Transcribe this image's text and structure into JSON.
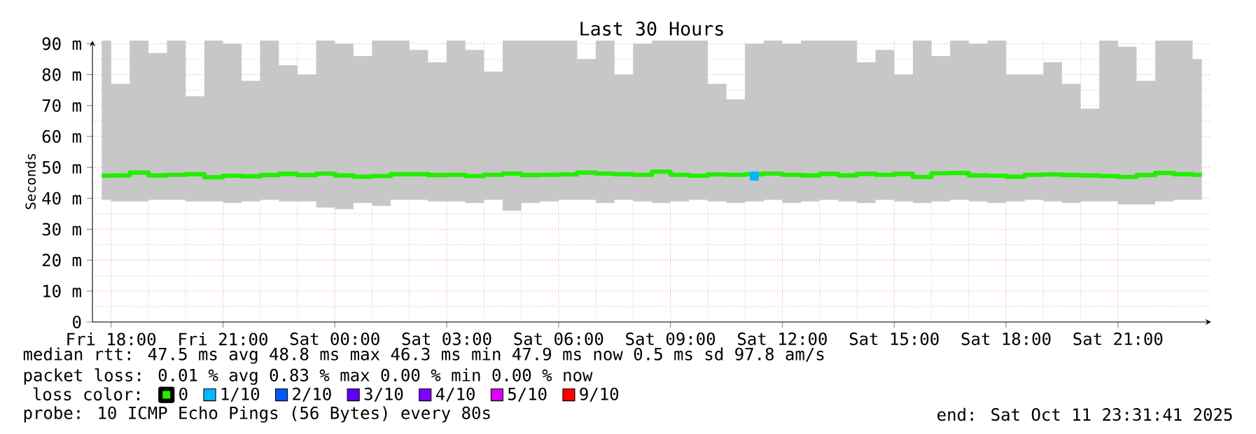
{
  "chart_data": {
    "type": "step",
    "title": "Last 30 Hours",
    "ylabel": "Seconds",
    "legend_title": "loss color:",
    "x": [
      "2025-10-10T17:45",
      "2025-10-10T18:15",
      "2025-10-10T18:45",
      "2025-10-10T19:15",
      "2025-10-10T19:45",
      "2025-10-10T20:15",
      "2025-10-10T20:45",
      "2025-10-10T21:15",
      "2025-10-10T21:45",
      "2025-10-10T22:15",
      "2025-10-10T22:45",
      "2025-10-10T23:15",
      "2025-10-10T23:45",
      "2025-10-11T00:15",
      "2025-10-11T00:45",
      "2025-10-11T01:15",
      "2025-10-11T01:45",
      "2025-10-11T02:15",
      "2025-10-11T02:45",
      "2025-10-11T03:15",
      "2025-10-11T03:45",
      "2025-10-11T04:15",
      "2025-10-11T04:45",
      "2025-10-11T05:15",
      "2025-10-11T05:45",
      "2025-10-11T06:15",
      "2025-10-11T06:45",
      "2025-10-11T07:15",
      "2025-10-11T07:45",
      "2025-10-11T08:15",
      "2025-10-11T08:45",
      "2025-10-11T09:15",
      "2025-10-11T09:45",
      "2025-10-11T10:15",
      "2025-10-11T10:45",
      "2025-10-11T11:15",
      "2025-10-11T11:45",
      "2025-10-11T12:15",
      "2025-10-11T12:45",
      "2025-10-11T13:15",
      "2025-10-11T13:45",
      "2025-10-11T14:15",
      "2025-10-11T14:45",
      "2025-10-11T15:15",
      "2025-10-11T15:45",
      "2025-10-11T16:15",
      "2025-10-11T16:45",
      "2025-10-11T17:15",
      "2025-10-11T17:45",
      "2025-10-11T18:15",
      "2025-10-11T18:45",
      "2025-10-11T19:15",
      "2025-10-11T19:45",
      "2025-10-11T20:15",
      "2025-10-11T20:45",
      "2025-10-11T21:15",
      "2025-10-11T21:45",
      "2025-10-11T22:15",
      "2025-10-11T22:45",
      "2025-10-11T23:15"
    ],
    "series": [
      {
        "name": "0",
        "color": "#22ee00",
        "values": [
          47.3,
          47.4,
          48.3,
          47.4,
          47.6,
          47.8,
          46.8,
          47.3,
          47.1,
          47.5,
          47.9,
          47.5,
          48.0,
          47.4,
          47.0,
          47.2,
          47.8,
          47.8,
          47.5,
          47.6,
          47.2,
          47.6,
          48.0,
          47.5,
          47.6,
          47.7,
          48.3,
          48.0,
          47.8,
          47.6,
          48.6,
          47.6,
          47.3,
          47.7,
          47.6,
          47.8,
          48.0,
          47.6,
          47.4,
          47.9,
          47.4,
          47.9,
          47.6,
          47.9,
          46.9,
          48.1,
          48.2,
          47.4,
          47.3,
          47.0,
          47.6,
          47.7,
          47.5,
          47.4,
          47.2,
          46.9,
          47.5,
          48.2,
          47.8,
          47.6
        ],
        "upper": [
          91,
          77,
          91,
          87,
          91,
          73,
          91,
          90,
          78,
          91,
          83,
          80,
          91,
          90,
          86,
          91,
          91,
          88,
          84,
          91,
          88,
          81,
          91,
          91,
          91,
          91,
          85,
          91,
          80,
          90,
          91,
          91,
          91,
          77,
          72,
          90,
          91,
          90,
          91,
          91,
          91,
          84,
          88,
          80,
          91,
          86,
          91,
          90,
          91,
          80,
          80,
          84,
          77,
          69,
          91,
          89,
          78,
          91,
          91,
          85
        ],
        "lower": [
          39.5,
          39.0,
          39.0,
          39.5,
          39.5,
          39.0,
          39.0,
          38.5,
          39.0,
          39.5,
          39.0,
          39.0,
          37.0,
          36.5,
          38.5,
          37.5,
          39.5,
          39.5,
          39.0,
          39.0,
          38.5,
          39.5,
          36.0,
          38.5,
          39.0,
          39.5,
          39.5,
          38.5,
          39.5,
          39.0,
          38.5,
          39.0,
          39.5,
          39.0,
          38.5,
          39.0,
          39.5,
          38.5,
          39.0,
          39.5,
          39.0,
          38.5,
          39.5,
          39.0,
          38.5,
          39.0,
          39.5,
          39.0,
          38.5,
          39.0,
          39.5,
          39.0,
          38.5,
          39.0,
          39.0,
          38.0,
          38.0,
          39.0,
          39.5,
          39.5
        ]
      },
      {
        "name": "1/10",
        "color": "#00b8ff",
        "type": "scatter",
        "marker": "square",
        "x": [
          "2025-10-11T11:15"
        ],
        "values": [
          47.2
        ]
      },
      {
        "name": "2/10",
        "color": "#0059ff",
        "values": [
          null,
          null,
          null,
          null,
          null,
          null,
          null,
          null,
          null,
          null,
          null,
          null,
          null,
          null,
          null,
          null,
          null,
          null,
          null,
          null,
          null,
          null,
          null,
          null,
          null,
          null,
          null,
          null,
          null,
          null,
          null,
          null,
          null,
          null,
          null,
          null,
          null,
          null,
          null,
          null,
          null,
          null,
          null,
          null,
          null,
          null,
          null,
          null,
          null,
          null,
          null,
          null,
          null,
          null,
          null,
          null,
          null,
          null,
          null,
          null
        ]
      },
      {
        "name": "3/10",
        "color": "#5e00ff",
        "values": [
          null,
          null,
          null,
          null,
          null,
          null,
          null,
          null,
          null,
          null,
          null,
          null,
          null,
          null,
          null,
          null,
          null,
          null,
          null,
          null,
          null,
          null,
          null,
          null,
          null,
          null,
          null,
          null,
          null,
          null,
          null,
          null,
          null,
          null,
          null,
          null,
          null,
          null,
          null,
          null,
          null,
          null,
          null,
          null,
          null,
          null,
          null,
          null,
          null,
          null,
          null,
          null,
          null,
          null,
          null,
          null,
          null,
          null,
          null,
          null
        ]
      },
      {
        "name": "4/10",
        "color": "#7e00ff",
        "values": [
          null,
          null,
          null,
          null,
          null,
          null,
          null,
          null,
          null,
          null,
          null,
          null,
          null,
          null,
          null,
          null,
          null,
          null,
          null,
          null,
          null,
          null,
          null,
          null,
          null,
          null,
          null,
          null,
          null,
          null,
          null,
          null,
          null,
          null,
          null,
          null,
          null,
          null,
          null,
          null,
          null,
          null,
          null,
          null,
          null,
          null,
          null,
          null,
          null,
          null,
          null,
          null,
          null,
          null,
          null,
          null,
          null,
          null,
          null,
          null
        ]
      },
      {
        "name": "5/10",
        "color": "#dd00ff",
        "values": [
          null,
          null,
          null,
          null,
          null,
          null,
          null,
          null,
          null,
          null,
          null,
          null,
          null,
          null,
          null,
          null,
          null,
          null,
          null,
          null,
          null,
          null,
          null,
          null,
          null,
          null,
          null,
          null,
          null,
          null,
          null,
          null,
          null,
          null,
          null,
          null,
          null,
          null,
          null,
          null,
          null,
          null,
          null,
          null,
          null,
          null,
          null,
          null,
          null,
          null,
          null,
          null,
          null,
          null,
          null,
          null,
          null,
          null,
          null,
          null
        ]
      },
      {
        "name": "9/10",
        "color": "#ff0000",
        "values": [
          null,
          null,
          null,
          null,
          null,
          null,
          null,
          null,
          null,
          null,
          null,
          null,
          null,
          null,
          null,
          null,
          null,
          null,
          null,
          null,
          null,
          null,
          null,
          null,
          null,
          null,
          null,
          null,
          null,
          null,
          null,
          null,
          null,
          null,
          null,
          null,
          null,
          null,
          null,
          null,
          null,
          null,
          null,
          null,
          null,
          null,
          null,
          null,
          null,
          null,
          null,
          null,
          null,
          null,
          null,
          null,
          null,
          null,
          null,
          null
        ]
      }
    ],
    "xlim": [
      "2025-10-10T17:30",
      "2025-10-11T23:30"
    ],
    "xticks": [
      {
        "value": "2025-10-10T18:00",
        "label": "Fri 18:00"
      },
      {
        "value": "2025-10-10T21:00",
        "label": "Fri 21:00"
      },
      {
        "value": "2025-10-11T00:00",
        "label": "Sat 00:00"
      },
      {
        "value": "2025-10-11T03:00",
        "label": "Sat 03:00"
      },
      {
        "value": "2025-10-11T06:00",
        "label": "Sat 06:00"
      },
      {
        "value": "2025-10-11T09:00",
        "label": "Sat 09:00"
      },
      {
        "value": "2025-10-11T12:00",
        "label": "Sat 12:00"
      },
      {
        "value": "2025-10-11T15:00",
        "label": "Sat 15:00"
      },
      {
        "value": "2025-10-11T18:00",
        "label": "Sat 18:00"
      },
      {
        "value": "2025-10-11T21:00",
        "label": "Sat 21:00"
      }
    ],
    "ylim": [
      0,
      91
    ],
    "yticks": [
      0,
      {
        "value": 10,
        "label": "10 m"
      },
      {
        "value": 20,
        "label": "20 m"
      },
      {
        "value": 30,
        "label": "30 m"
      },
      {
        "value": 40,
        "label": "40 m"
      },
      {
        "value": 50,
        "label": "50 m"
      },
      {
        "value": 60,
        "label": "60 m"
      },
      {
        "value": 70,
        "label": "70 m"
      },
      {
        "value": 80,
        "label": "80 m"
      },
      {
        "value": 90,
        "label": "90 m"
      }
    ],
    "grid": true,
    "legend": "bottom",
    "annotations": [
      "median rtt:  47.5 ms avg  48.8 ms max  46.3 ms min  47.9 ms now  0.5 ms sd  97.8   am/s",
      "packet loss: 0.01 % avg  0.83 % max  0.00 % min  0.00 % now",
      "probe:       10 ICMP Echo Pings (56 Bytes) every 80s",
      "end: Sat Oct 11 23:31:41 2025"
    ]
  }
}
